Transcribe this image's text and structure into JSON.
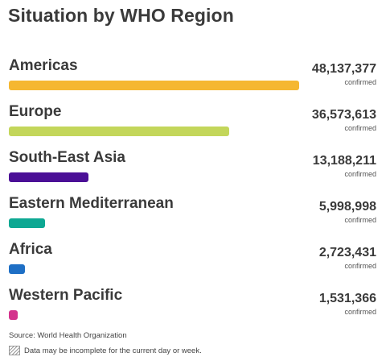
{
  "title": "Situation by WHO Region",
  "chart_data": {
    "type": "bar",
    "categories": [
      "Americas",
      "Europe",
      "South-East Asia",
      "Eastern Mediterranean",
      "Africa",
      "Western Pacific"
    ],
    "values": [
      48137377,
      36573613,
      13188211,
      5998998,
      2723431,
      1531366
    ],
    "value_labels": [
      "48,137,377",
      "36,573,613",
      "13,188,211",
      "5,998,998",
      "2,723,431",
      "1,531,366"
    ],
    "unit_label": "confirmed",
    "colors": [
      "#f5b731",
      "#c3d65a",
      "#4b0f96",
      "#0ea893",
      "#1e6fc5",
      "#d4338d"
    ],
    "title": "Situation by WHO Region"
  },
  "footer": {
    "source": "Source: World Health Organization",
    "note": "Data may be incomplete for the current day or week."
  }
}
